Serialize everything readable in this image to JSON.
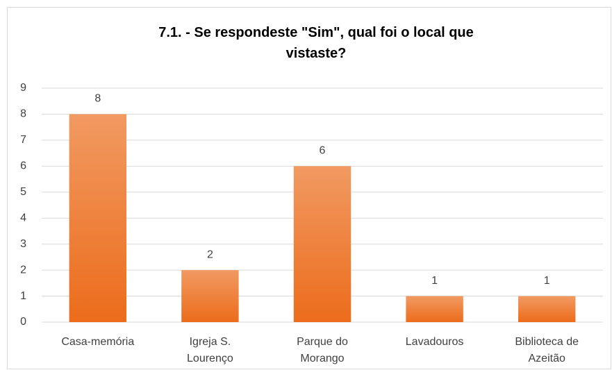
{
  "chart_data": {
    "type": "bar",
    "title": "7.1. - Se respondeste \"Sim\", qual foi o local que vistaste?",
    "categories": [
      "Casa-memória",
      "Igreja S. Lourenço",
      "Parque do Morango",
      "Lavadouros",
      "Biblioteca de Azeitão"
    ],
    "values": [
      8,
      2,
      6,
      1,
      1
    ],
    "color": "#ed7d31",
    "ylim": [
      0,
      9
    ],
    "yticks": [
      0,
      1,
      2,
      3,
      4,
      5,
      6,
      7,
      8,
      9
    ],
    "grid": true
  }
}
